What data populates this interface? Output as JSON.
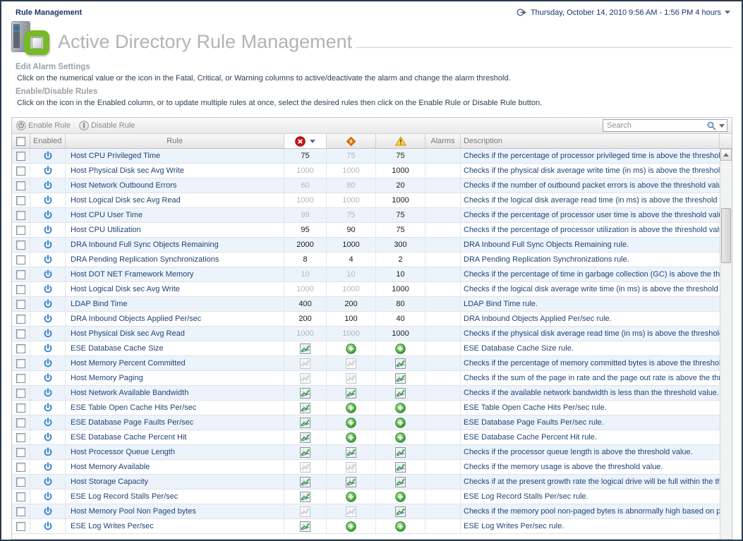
{
  "page": {
    "breadcrumb": "Rule Management",
    "time_range": "Thursday, October 14, 2010 9:56 AM - 1:56 PM 4 hours",
    "title": "Active Directory Rule Management"
  },
  "sections": {
    "edit_alarm": {
      "heading": "Edit Alarm Settings",
      "description": "Click on the numerical value or the icon in the Fatal, Critical, or Warning columns to active/deactivate the alarm and change the alarm threshold."
    },
    "enable_disable": {
      "heading": "Enable/Disable Rules",
      "description": "Click on the icon in the Enabled column, or to update multiple rules at once, select the desired rules then click on the Enable Rule or Disable Rule button."
    }
  },
  "toolbar": {
    "enable_label": "Enable Rule",
    "disable_label": "Disable Rule",
    "search_placeholder": "Search"
  },
  "table": {
    "headers": {
      "enabled": "Enabled",
      "rule": "Rule",
      "fatal": "fatal-icon",
      "critical": "critical-icon",
      "warning": "warning-icon",
      "alarms": "Alarms",
      "description": "Description"
    },
    "rows": [
      {
        "enabled": true,
        "rule": "Host CPU Privileged Time",
        "fatal": {
          "type": "number",
          "value": "75",
          "active": true
        },
        "critical": {
          "type": "number",
          "value": "75",
          "active": false
        },
        "warning": {
          "type": "number",
          "value": "75",
          "active": true
        },
        "alarms": "",
        "description": "Checks if the percentage of processor privileged time is above the threshold value."
      },
      {
        "enabled": true,
        "rule": "Host Physical Disk sec Avg Write",
        "fatal": {
          "type": "number",
          "value": "1000",
          "active": false
        },
        "critical": {
          "type": "number",
          "value": "1000",
          "active": false
        },
        "warning": {
          "type": "number",
          "value": "1000",
          "active": true
        },
        "alarms": "",
        "description": "Checks if the physical disk average write time (in ms) is above the threshold value."
      },
      {
        "enabled": true,
        "rule": "Host Network Outbound Errors",
        "fatal": {
          "type": "number",
          "value": "60",
          "active": false
        },
        "critical": {
          "type": "number",
          "value": "80",
          "active": false
        },
        "warning": {
          "type": "number",
          "value": "20",
          "active": true
        },
        "alarms": "",
        "description": "Checks if the number of outbound packet errors is above the threshold value."
      },
      {
        "enabled": true,
        "rule": "Host Logical Disk sec Avg Read",
        "fatal": {
          "type": "number",
          "value": "1000",
          "active": false
        },
        "critical": {
          "type": "number",
          "value": "1000",
          "active": false
        },
        "warning": {
          "type": "number",
          "value": "1000",
          "active": true
        },
        "alarms": "",
        "description": "Checks if the logical disk average read time (in ms) is above the threshold value."
      },
      {
        "enabled": true,
        "rule": "Host CPU User Time",
        "fatal": {
          "type": "number",
          "value": "99",
          "active": false
        },
        "critical": {
          "type": "number",
          "value": "75",
          "active": false
        },
        "warning": {
          "type": "number",
          "value": "75",
          "active": true
        },
        "alarms": "",
        "description": "Checks if the percentage of processor user time is above the threshold value."
      },
      {
        "enabled": true,
        "rule": "Host CPU Utilization",
        "fatal": {
          "type": "number",
          "value": "95",
          "active": true
        },
        "critical": {
          "type": "number",
          "value": "90",
          "active": true
        },
        "warning": {
          "type": "number",
          "value": "75",
          "active": true
        },
        "alarms": "",
        "description": "Checks if the percentage of processor utilization is above the threshold value."
      },
      {
        "enabled": true,
        "rule": "DRA Inbound Full Sync Objects Remaining",
        "fatal": {
          "type": "number",
          "value": "2000",
          "active": true
        },
        "critical": {
          "type": "number",
          "value": "1000",
          "active": true
        },
        "warning": {
          "type": "number",
          "value": "300",
          "active": true
        },
        "alarms": "",
        "description": "DRA Inbound Full Sync Objects Remaining rule."
      },
      {
        "enabled": true,
        "rule": "DRA Pending Replication Synchronizations",
        "fatal": {
          "type": "number",
          "value": "8",
          "active": true
        },
        "critical": {
          "type": "number",
          "value": "4",
          "active": true
        },
        "warning": {
          "type": "number",
          "value": "2",
          "active": true
        },
        "alarms": "",
        "description": "DRA Pending Replication Synchronizations rule."
      },
      {
        "enabled": true,
        "rule": "Host DOT NET Framework Memory",
        "fatal": {
          "type": "number",
          "value": "10",
          "active": false
        },
        "critical": {
          "type": "number",
          "value": "10",
          "active": false
        },
        "warning": {
          "type": "number",
          "value": "10",
          "active": true
        },
        "alarms": "",
        "description": "Checks if the percentage of time in garbage collection (GC) is above the threshold value."
      },
      {
        "enabled": true,
        "rule": "Host Logical Disk sec Avg Write",
        "fatal": {
          "type": "number",
          "value": "1000",
          "active": false
        },
        "critical": {
          "type": "number",
          "value": "1000",
          "active": false
        },
        "warning": {
          "type": "number",
          "value": "1000",
          "active": true
        },
        "alarms": "",
        "description": "Checks if the logical disk average write time (in ms) is above the threshold value."
      },
      {
        "enabled": true,
        "rule": "LDAP Bind Time",
        "fatal": {
          "type": "number",
          "value": "400",
          "active": true
        },
        "critical": {
          "type": "number",
          "value": "200",
          "active": true
        },
        "warning": {
          "type": "number",
          "value": "80",
          "active": true
        },
        "alarms": "",
        "description": "LDAP Bind Time rule."
      },
      {
        "enabled": true,
        "rule": "DRA Inbound Objects Applied Per/sec",
        "fatal": {
          "type": "number",
          "value": "200",
          "active": true
        },
        "critical": {
          "type": "number",
          "value": "100",
          "active": true
        },
        "warning": {
          "type": "number",
          "value": "40",
          "active": true
        },
        "alarms": "",
        "description": "DRA Inbound Objects Applied Per/sec rule."
      },
      {
        "enabled": true,
        "rule": "Host Physical Disk sec Avg Read",
        "fatal": {
          "type": "number",
          "value": "1000",
          "active": false
        },
        "critical": {
          "type": "number",
          "value": "1000",
          "active": false
        },
        "warning": {
          "type": "number",
          "value": "1000",
          "active": true
        },
        "alarms": "",
        "description": "Checks if the physical disk average read time (in ms) is above the threshold value."
      },
      {
        "enabled": true,
        "rule": "ESE Database Cache Size",
        "fatal": {
          "type": "chart",
          "active": true
        },
        "critical": {
          "type": "add"
        },
        "warning": {
          "type": "add"
        },
        "alarms": "",
        "description": "ESE Database Cache Size rule."
      },
      {
        "enabled": true,
        "rule": "Host Memory Percent Committed",
        "fatal": {
          "type": "chart",
          "active": false
        },
        "critical": {
          "type": "chart",
          "active": false
        },
        "warning": {
          "type": "chart",
          "active": true
        },
        "alarms": "",
        "description": "Checks if the percentage of memory committed bytes is above the threshold value."
      },
      {
        "enabled": true,
        "rule": "Host Memory Paging",
        "fatal": {
          "type": "chart",
          "active": false
        },
        "critical": {
          "type": "chart",
          "active": false
        },
        "warning": {
          "type": "chart",
          "active": true
        },
        "alarms": "",
        "description": "Checks if the sum of the page in rate and the page out rate is above the threshold value."
      },
      {
        "enabled": true,
        "rule": "Host Network Available Bandwidth",
        "fatal": {
          "type": "chart",
          "active": true
        },
        "critical": {
          "type": "chart",
          "active": true
        },
        "warning": {
          "type": "chart",
          "active": true
        },
        "alarms": "",
        "description": "Checks if the available network bandwidth is less than the threshold value."
      },
      {
        "enabled": true,
        "rule": "ESE Table Open Cache Hits Per/sec",
        "fatal": {
          "type": "chart",
          "active": true
        },
        "critical": {
          "type": "add"
        },
        "warning": {
          "type": "add"
        },
        "alarms": "",
        "description": "ESE Table Open Cache Hits Per/sec rule."
      },
      {
        "enabled": true,
        "rule": "ESE Database Page Faults Per/sec",
        "fatal": {
          "type": "chart",
          "active": true
        },
        "critical": {
          "type": "add"
        },
        "warning": {
          "type": "add"
        },
        "alarms": "",
        "description": "ESE Database Page Faults Per/sec rule."
      },
      {
        "enabled": true,
        "rule": "ESE Database Cache Percent Hit",
        "fatal": {
          "type": "chart",
          "active": true
        },
        "critical": {
          "type": "add"
        },
        "warning": {
          "type": "add"
        },
        "alarms": "",
        "description": "ESE Database Cache Percent Hit rule."
      },
      {
        "enabled": true,
        "rule": "Host Processor Queue Length",
        "fatal": {
          "type": "chart",
          "active": true
        },
        "critical": {
          "type": "chart",
          "active": true
        },
        "warning": {
          "type": "chart",
          "active": true
        },
        "alarms": "",
        "description": "Checks if the processor queue length is above the threshold value."
      },
      {
        "enabled": true,
        "rule": "Host Memory Available",
        "fatal": {
          "type": "chart",
          "active": false
        },
        "critical": {
          "type": "chart",
          "active": false
        },
        "warning": {
          "type": "chart",
          "active": true
        },
        "alarms": "",
        "description": "Checks if the memory usage is above the threshold value."
      },
      {
        "enabled": true,
        "rule": "Host Storage Capacity",
        "fatal": {
          "type": "chart",
          "active": true
        },
        "critical": {
          "type": "chart",
          "active": true
        },
        "warning": {
          "type": "chart",
          "active": true
        },
        "alarms": "",
        "description": "Checks if at the present growth rate the logical drive will be full within the threshold period."
      },
      {
        "enabled": true,
        "rule": "ESE Log Record Stalls Per/sec",
        "fatal": {
          "type": "chart",
          "active": true
        },
        "critical": {
          "type": "add"
        },
        "warning": {
          "type": "add"
        },
        "alarms": "",
        "description": "ESE Log Record Stalls Per/sec rule."
      },
      {
        "enabled": true,
        "rule": "Host Memory Pool Non Paged bytes",
        "fatal": {
          "type": "chart",
          "active": false
        },
        "critical": {
          "type": "chart",
          "active": false
        },
        "warning": {
          "type": "chart",
          "active": true
        },
        "alarms": "",
        "description": "Checks if the memory pool non-paged bytes is abnormally high based on past behavior."
      },
      {
        "enabled": true,
        "rule": "ESE Log Writes Per/sec",
        "fatal": {
          "type": "chart",
          "active": true
        },
        "critical": {
          "type": "add"
        },
        "warning": {
          "type": "add"
        },
        "alarms": "",
        "description": "ESE Log Writes Per/sec rule."
      }
    ]
  },
  "colors": {
    "fatal_red": "#cf1414",
    "critical_orange": "#e87a10",
    "warning_yellow": "#ffd34d",
    "enabled_power_blue": "#2e7bd6",
    "add_green": "#2f9e2f",
    "link_navy": "#1f4377",
    "title_gray": "#b3b3b3",
    "row_alt_blue": "#edf3fb"
  }
}
